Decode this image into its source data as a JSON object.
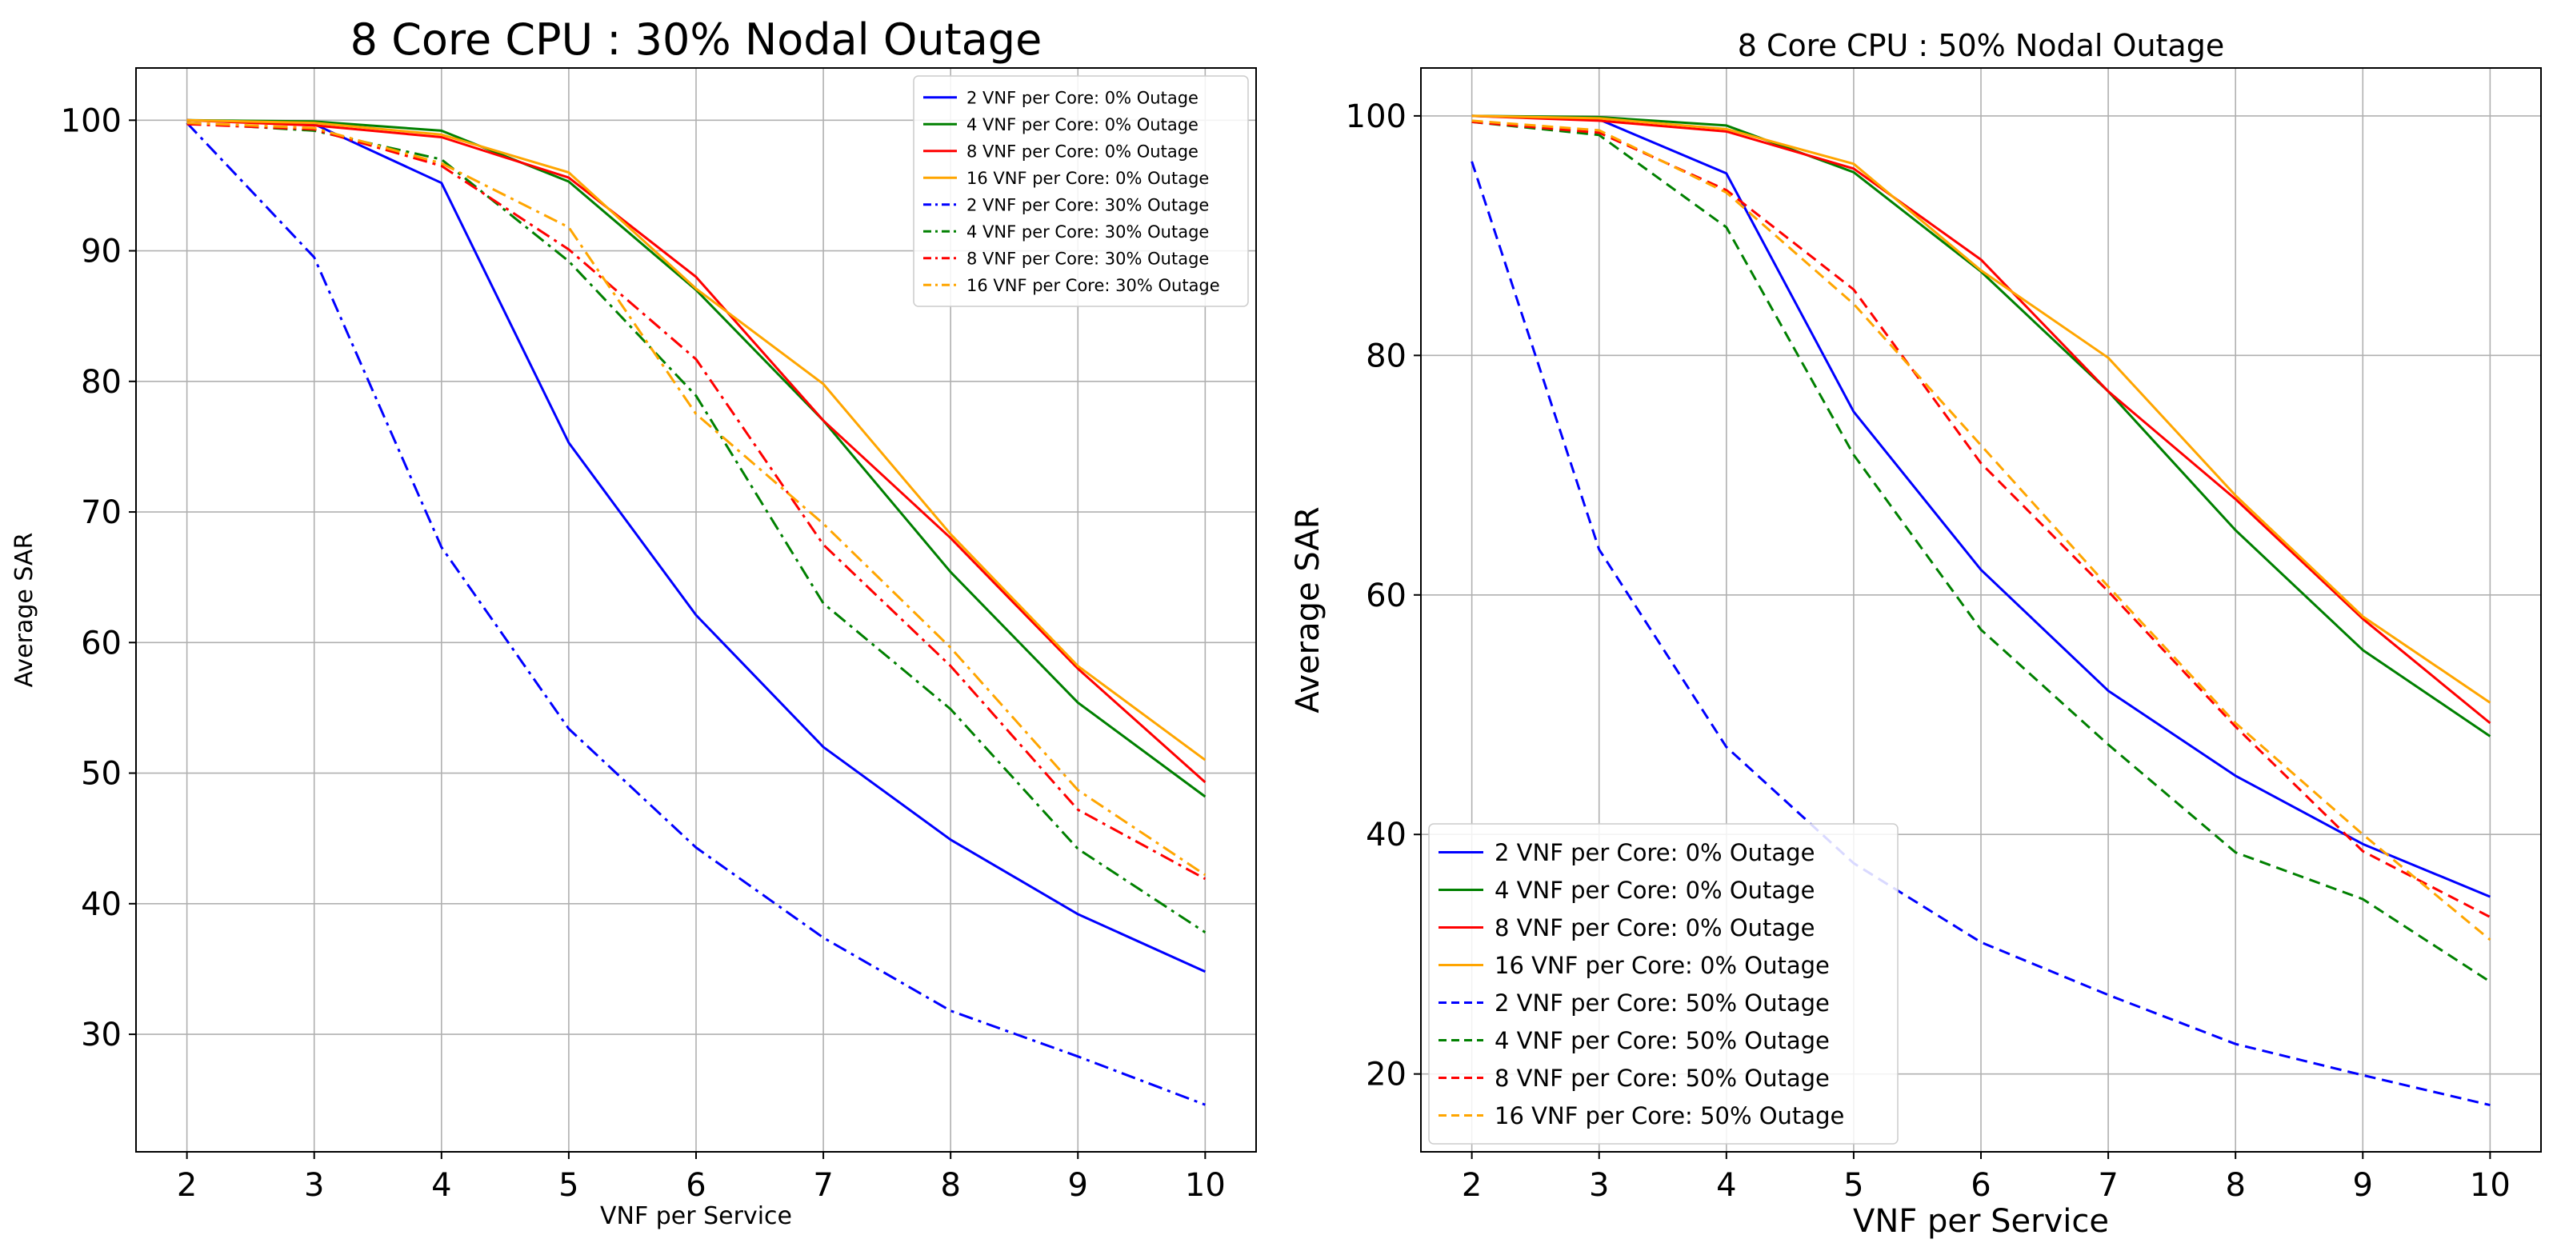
{
  "chart_data": [
    {
      "type": "line",
      "title": "8 Core CPU : 30% Nodal Outage",
      "xlabel": "VNF per Service",
      "ylabel": "Average SAR",
      "xlim": [
        1.6,
        10.4
      ],
      "ylim": [
        21,
        104
      ],
      "xticks": [
        2,
        3,
        4,
        5,
        6,
        7,
        8,
        9,
        10
      ],
      "yticks": [
        30,
        40,
        50,
        60,
        70,
        80,
        90,
        100
      ],
      "grid": true,
      "legend_position": "top-right",
      "series": [
        {
          "name": "2 VNF per Core: 0% Outage",
          "color": "#0000ff",
          "style": "solid",
          "x": [
            2,
            3,
            4,
            5,
            6,
            7,
            8,
            9,
            10
          ],
          "values": [
            100,
            99.7,
            95.2,
            75.3,
            62.1,
            52.0,
            44.9,
            39.2,
            34.8
          ]
        },
        {
          "name": "4 VNF per Core: 0% Outage",
          "color": "#008000",
          "style": "solid",
          "x": [
            2,
            3,
            4,
            5,
            6,
            7,
            8,
            9,
            10
          ],
          "values": [
            100,
            99.9,
            99.2,
            95.3,
            87.0,
            77.0,
            65.4,
            55.4,
            48.2
          ]
        },
        {
          "name": "8 VNF per Core: 0% Outage",
          "color": "#ff0000",
          "style": "solid",
          "x": [
            2,
            3,
            4,
            5,
            6,
            7,
            8,
            9,
            10
          ],
          "values": [
            100,
            99.6,
            98.7,
            95.6,
            88.0,
            77.0,
            68.0,
            58.0,
            49.3
          ]
        },
        {
          "name": "16 VNF per Core: 0% Outage",
          "color": "#ffa500",
          "style": "solid",
          "x": [
            2,
            3,
            4,
            5,
            6,
            7,
            8,
            9,
            10
          ],
          "values": [
            100,
            99.8,
            98.9,
            96.0,
            87.1,
            79.8,
            68.3,
            58.2,
            51.0
          ]
        },
        {
          "name": "2 VNF per Core: 30% Outage",
          "color": "#0000ff",
          "style": "dashdot",
          "x": [
            2,
            3,
            4,
            5,
            6,
            7,
            8,
            9,
            10
          ],
          "values": [
            99.8,
            89.5,
            67.3,
            53.4,
            44.3,
            37.4,
            31.8,
            28.3,
            24.6
          ]
        },
        {
          "name": "4 VNF per Core: 30% Outage",
          "color": "#008000",
          "style": "dashdot",
          "x": [
            2,
            3,
            4,
            5,
            6,
            7,
            8,
            9,
            10
          ],
          "values": [
            99.8,
            99.2,
            97.0,
            89.2,
            78.9,
            63.0,
            54.9,
            44.2,
            37.8
          ]
        },
        {
          "name": "8 VNF per Core: 30% Outage",
          "color": "#ff0000",
          "style": "dashdot",
          "x": [
            2,
            3,
            4,
            5,
            6,
            7,
            8,
            9,
            10
          ],
          "values": [
            99.7,
            99.3,
            96.5,
            90.1,
            81.7,
            67.5,
            58.2,
            47.2,
            41.9
          ]
        },
        {
          "name": "16 VNF per Core: 30% Outage",
          "color": "#ffa500",
          "style": "dashdot",
          "x": [
            2,
            3,
            4,
            5,
            6,
            7,
            8,
            9,
            10
          ],
          "values": [
            99.8,
            99.4,
            96.7,
            91.8,
            77.5,
            69.1,
            59.6,
            48.7,
            42.2
          ]
        }
      ]
    },
    {
      "type": "line",
      "title": "8 Core CPU : 50% Nodal Outage",
      "xlabel": "VNF per Service",
      "ylabel": "Average SAR",
      "xlim": [
        1.6,
        10.4
      ],
      "ylim": [
        13.5,
        104
      ],
      "xticks": [
        2,
        3,
        4,
        5,
        6,
        7,
        8,
        9,
        10
      ],
      "yticks": [
        20,
        40,
        60,
        80,
        100
      ],
      "grid": true,
      "legend_position": "bottom-left",
      "series": [
        {
          "name": "2 VNF per Core: 0% Outage",
          "color": "#0000ff",
          "style": "solid",
          "x": [
            2,
            3,
            4,
            5,
            6,
            7,
            8,
            9,
            10
          ],
          "values": [
            100,
            99.7,
            95.2,
            75.3,
            62.1,
            52.0,
            44.9,
            39.2,
            34.8
          ]
        },
        {
          "name": "4 VNF per Core: 0% Outage",
          "color": "#008000",
          "style": "solid",
          "x": [
            2,
            3,
            4,
            5,
            6,
            7,
            8,
            9,
            10
          ],
          "values": [
            100,
            99.9,
            99.2,
            95.3,
            87.0,
            77.0,
            65.4,
            55.4,
            48.2
          ]
        },
        {
          "name": "8 VNF per Core: 0% Outage",
          "color": "#ff0000",
          "style": "solid",
          "x": [
            2,
            3,
            4,
            5,
            6,
            7,
            8,
            9,
            10
          ],
          "values": [
            100,
            99.6,
            98.7,
            95.6,
            88.0,
            77.0,
            68.0,
            58.0,
            49.3
          ]
        },
        {
          "name": "16 VNF per Core: 0% Outage",
          "color": "#ffa500",
          "style": "solid",
          "x": [
            2,
            3,
            4,
            5,
            6,
            7,
            8,
            9,
            10
          ],
          "values": [
            100,
            99.8,
            98.9,
            96.0,
            87.1,
            79.8,
            68.3,
            58.2,
            51.0
          ]
        },
        {
          "name": "2 VNF per Core: 50% Outage",
          "color": "#0000ff",
          "style": "dashed",
          "x": [
            2,
            3,
            4,
            5,
            6,
            7,
            8,
            9,
            10
          ],
          "values": [
            96.2,
            63.8,
            47.3,
            37.6,
            31.0,
            26.6,
            22.5,
            19.9,
            17.4
          ]
        },
        {
          "name": "4 VNF per Core: 50% Outage",
          "color": "#008000",
          "style": "dashed",
          "x": [
            2,
            3,
            4,
            5,
            6,
            7,
            8,
            9,
            10
          ],
          "values": [
            99.5,
            98.4,
            90.7,
            71.7,
            57.1,
            47.5,
            38.5,
            34.6,
            27.7
          ]
        },
        {
          "name": "8 VNF per Core: 50% Outage",
          "color": "#ff0000",
          "style": "dashed",
          "x": [
            2,
            3,
            4,
            5,
            6,
            7,
            8,
            9,
            10
          ],
          "values": [
            99.5,
            98.6,
            93.8,
            85.5,
            71.0,
            60.3,
            49.0,
            38.6,
            33.1
          ]
        },
        {
          "name": "16 VNF per Core: 50% Outage",
          "color": "#ffa500",
          "style": "dashed",
          "x": [
            2,
            3,
            4,
            5,
            6,
            7,
            8,
            9,
            10
          ],
          "values": [
            99.6,
            98.8,
            93.6,
            84.3,
            72.5,
            60.7,
            49.3,
            40.0,
            31.2
          ]
        }
      ]
    }
  ]
}
